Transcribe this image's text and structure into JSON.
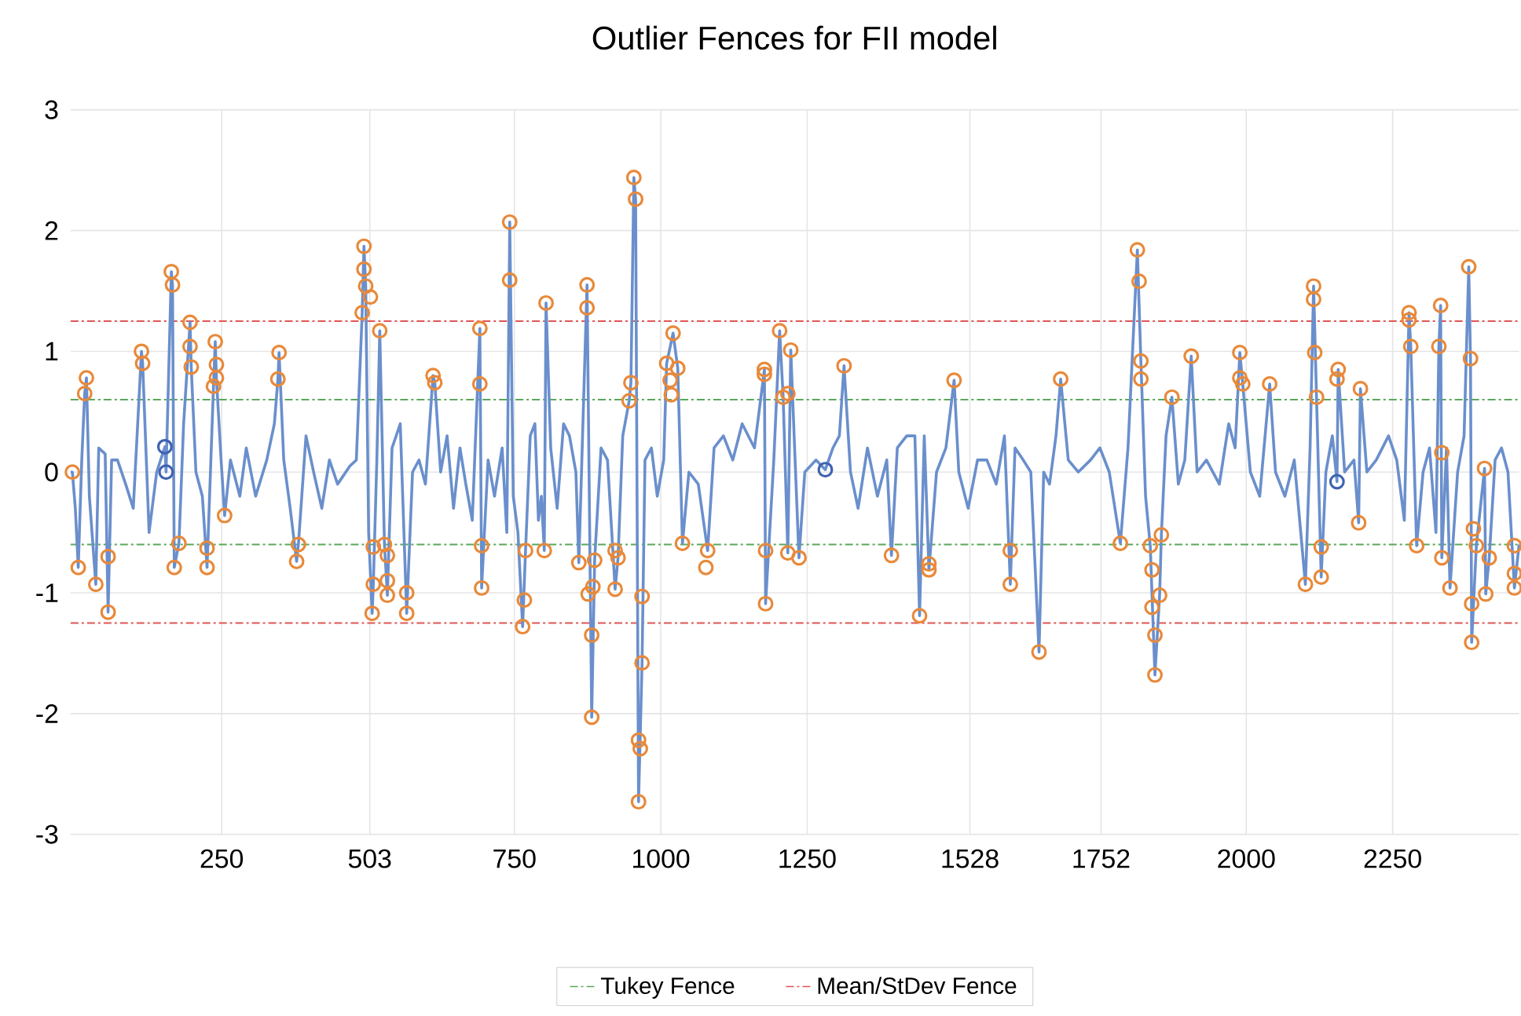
{
  "chart_data": {
    "type": "line",
    "title": "Outlier Fences for FII model",
    "xlim": [
      -8,
      2466
    ],
    "ylim": [
      -3,
      3
    ],
    "xticks": [
      250,
      503,
      750,
      1000,
      1250,
      1528,
      1752,
      2000,
      2250
    ],
    "yticks": [
      -3,
      -2,
      -1,
      0,
      1,
      2,
      3
    ],
    "grid": true,
    "legend": "bottom",
    "series": [
      {
        "color": "#6a8fcc",
        "marker": "none",
        "x": [
          -8,
          -5,
          0,
          5,
          11,
          16,
          19,
          24,
          35,
          40,
          51,
          56,
          62,
          72,
          86,
          99,
          113,
          115,
          126,
          139,
          153,
          155,
          164,
          166,
          169,
          177,
          185,
          196,
          198,
          206,
          217,
          225,
          236,
          239,
          241,
          249,
          255,
          265,
          281,
          292,
          308,
          327,
          340,
          346,
          348,
          356,
          367,
          378,
          381,
          394,
          407,
          421,
          434,
          448,
          469,
          480,
          490,
          493,
          496,
          501,
          507,
          509,
          515,
          520,
          528,
          533,
          541,
          555,
          566,
          576,
          587,
          598,
          611,
          614,
          624,
          635,
          646,
          657,
          667,
          678,
          691,
          694,
          705,
          716,
          729,
          737,
          742,
          748,
          756,
          764,
          769,
          777,
          785,
          791,
          796,
          801,
          804,
          812,
          823,
          834,
          844,
          855,
          860,
          874,
          882,
          887,
          898,
          909,
          922,
          927,
          935,
          946,
          949,
          954,
          957,
          962,
          968,
          973,
          984,
          994,
          1005,
          1010,
          1021,
          1029,
          1037,
          1048,
          1064,
          1080,
          1091,
          1107,
          1123,
          1139,
          1160,
          1177,
          1179,
          1193,
          1203,
          1209,
          1217,
          1222,
          1236,
          1246,
          1265,
          1281,
          1294,
          1305,
          1313,
          1324,
          1337,
          1353,
          1370,
          1386,
          1394,
          1404,
          1420,
          1434,
          1442,
          1450,
          1458,
          1471,
          1487,
          1501,
          1509,
          1525,
          1541,
          1557,
          1573,
          1587,
          1597,
          1605,
          1619,
          1632,
          1646,
          1654,
          1664,
          1675,
          1683,
          1696,
          1713,
          1734,
          1750,
          1766,
          1785,
          1798,
          1814,
          1820,
          1828,
          1836,
          1844,
          1852,
          1855,
          1863,
          1873,
          1884,
          1895,
          1906,
          1916,
          1932,
          1954,
          1970,
          1981,
          1989,
          1994,
          2007,
          2023,
          2040,
          2050,
          2066,
          2082,
          2101,
          2109,
          2115,
          2120,
          2128,
          2136,
          2147,
          2155,
          2157,
          2168,
          2184,
          2192,
          2195,
          2206,
          2222,
          2243,
          2257,
          2270,
          2278,
          2281,
          2291,
          2302,
          2313,
          2324,
          2329,
          2332,
          2334,
          2342,
          2348,
          2361,
          2372,
          2380,
          2383,
          2385,
          2393,
          2407,
          2409,
          2415,
          2425,
          2436,
          2447,
          2458,
          2466
        ],
        "values": [
          0.0,
          0.0,
          -0.3,
          -0.79,
          0.1,
          0.65,
          0.78,
          -0.2,
          -0.93,
          0.2,
          0.15,
          -1.16,
          0.1,
          0.1,
          -0.1,
          -0.3,
          1.0,
          0.9,
          -0.5,
          0.0,
          0.21,
          0.0,
          1.66,
          1.55,
          -0.79,
          -0.59,
          0.4,
          1.24,
          0.87,
          0.0,
          -0.2,
          -0.79,
          0.71,
          1.08,
          0.78,
          0.1,
          -0.36,
          0.1,
          -0.2,
          0.2,
          -0.2,
          0.1,
          0.4,
          0.77,
          0.99,
          0.1,
          -0.3,
          -0.74,
          -0.6,
          0.3,
          0.0,
          -0.3,
          0.1,
          -0.1,
          0.05,
          0.1,
          1.32,
          1.87,
          1.54,
          -0.5,
          -1.17,
          -0.93,
          0.1,
          1.17,
          -0.6,
          -1.02,
          0.2,
          0.4,
          -1.17,
          0.0,
          0.1,
          -0.1,
          0.8,
          0.74,
          0.0,
          0.3,
          -0.3,
          0.2,
          -0.1,
          -0.4,
          1.19,
          -0.96,
          0.1,
          -0.2,
          0.2,
          -0.5,
          2.07,
          -0.2,
          -0.5,
          -1.28,
          -0.65,
          0.3,
          0.4,
          -0.4,
          -0.2,
          -0.65,
          1.4,
          0.2,
          -0.3,
          0.4,
          0.3,
          0.0,
          -0.75,
          1.55,
          -2.03,
          -0.73,
          0.2,
          0.1,
          -0.97,
          -0.71,
          0.3,
          0.59,
          0.74,
          2.44,
          2.26,
          -2.73,
          -1.58,
          0.1,
          0.2,
          -0.2,
          0.1,
          0.9,
          1.15,
          0.86,
          -0.59,
          0.0,
          -0.1,
          -0.65,
          0.2,
          0.3,
          0.1,
          0.4,
          0.2,
          0.85,
          -1.09,
          0.1,
          1.17,
          0.62,
          -0.67,
          1.01,
          -0.71,
          0.0,
          0.1,
          0.02,
          0.2,
          0.3,
          0.88,
          0.0,
          -0.3,
          0.2,
          -0.2,
          0.1,
          -0.69,
          0.2,
          0.3,
          0.3,
          -1.19,
          0.3,
          -0.81,
          0.0,
          0.2,
          0.76,
          0.0,
          -0.3,
          0.1,
          0.1,
          -0.1,
          0.3,
          -0.93,
          0.2,
          0.1,
          0.0,
          -1.49,
          0.0,
          -0.1,
          0.3,
          0.77,
          0.1,
          0.0,
          0.1,
          0.2,
          0.0,
          -0.59,
          0.2,
          1.84,
          0.92,
          -0.2,
          -0.61,
          -1.68,
          -1.02,
          -0.52,
          0.3,
          0.62,
          -0.1,
          0.1,
          0.96,
          0.0,
          0.1,
          -0.1,
          0.4,
          0.2,
          0.99,
          0.73,
          0.0,
          -0.2,
          0.73,
          0.0,
          -0.2,
          0.1,
          -0.93,
          0.2,
          1.54,
          0.62,
          -0.87,
          0.0,
          0.3,
          -0.08,
          0.85,
          0.0,
          0.1,
          -0.42,
          0.69,
          0.0,
          0.1,
          0.3,
          0.1,
          -0.4,
          1.32,
          1.04,
          -0.61,
          0.0,
          0.2,
          -0.5,
          1.04,
          1.38,
          -0.71,
          0.2,
          -0.96,
          0.0,
          0.3,
          1.7,
          0.94,
          -1.41,
          -0.61,
          0.03,
          -1.01,
          -0.71,
          0.1,
          0.2,
          0.0,
          -0.96,
          -0.6
        ]
      },
      {
        "type": "scatter",
        "color": "#e8893a",
        "marker": "circle",
        "x": [
          -5,
          5,
          16,
          19,
          35,
          56,
          56,
          113,
          115,
          164,
          166,
          169,
          177,
          196,
          196,
          198,
          225,
          225,
          236,
          239,
          241,
          241,
          255,
          346,
          348,
          378,
          381,
          490,
          493,
          493,
          496,
          504,
          507,
          509,
          509,
          520,
          528,
          533,
          533,
          533,
          566,
          566,
          611,
          614,
          691,
          691,
          694,
          694,
          742,
          742,
          764,
          767,
          769,
          801,
          804,
          860,
          874,
          874,
          876,
          882,
          882,
          884,
          887,
          922,
          922,
          927,
          946,
          949,
          954,
          957,
          962,
          962,
          965,
          968,
          968,
          1010,
          1016,
          1018,
          1021,
          1029,
          1037,
          1077,
          1080,
          1177,
          1177,
          1179,
          1179,
          1203,
          1209,
          1217,
          1217,
          1222,
          1236,
          1313,
          1394,
          1442,
          1458,
          1458,
          1501,
          1597,
          1597,
          1646,
          1683,
          1785,
          1814,
          1817,
          1820,
          1820,
          1836,
          1839,
          1839,
          1844,
          1844,
          1852,
          1855,
          1873,
          1906,
          1989,
          1989,
          1994,
          2040,
          2101,
          2115,
          2115,
          2117,
          2120,
          2128,
          2128,
          2155,
          2157,
          2192,
          2195,
          2278,
          2278,
          2281,
          2291,
          2329,
          2332,
          2334,
          2334,
          2348,
          2380,
          2383,
          2385,
          2385,
          2388,
          2393,
          2407,
          2409,
          2415,
          2458,
          2458,
          2458
        ],
        "values": [
          0.0,
          -0.79,
          0.65,
          0.78,
          -0.93,
          -0.7,
          -1.16,
          1.0,
          0.9,
          1.66,
          1.55,
          -0.79,
          -0.59,
          1.24,
          1.04,
          0.87,
          -0.63,
          -0.79,
          0.71,
          1.08,
          0.89,
          0.78,
          -0.36,
          0.77,
          0.99,
          -0.74,
          -0.6,
          1.32,
          1.87,
          1.68,
          1.54,
          1.45,
          -1.17,
          -0.62,
          -0.93,
          1.17,
          -0.6,
          -0.69,
          -0.9,
          -1.02,
          -1.0,
          -1.17,
          0.8,
          0.74,
          1.19,
          0.73,
          -0.61,
          -0.96,
          2.07,
          1.59,
          -1.28,
          -1.06,
          -0.65,
          -0.65,
          1.4,
          -0.75,
          1.55,
          1.36,
          -1.01,
          -1.35,
          -2.03,
          -0.95,
          -0.73,
          -0.65,
          -0.97,
          -0.71,
          0.59,
          0.74,
          2.44,
          2.26,
          -2.22,
          -2.73,
          -2.29,
          -1.03,
          -1.58,
          0.9,
          0.76,
          0.64,
          1.15,
          0.86,
          -0.59,
          -0.79,
          -0.65,
          0.85,
          0.81,
          -0.65,
          -1.09,
          1.17,
          0.62,
          0.65,
          -0.67,
          1.01,
          -0.71,
          0.88,
          -0.69,
          -1.19,
          -0.76,
          -0.81,
          0.76,
          -0.65,
          -0.93,
          -1.49,
          0.77,
          -0.59,
          1.84,
          1.58,
          0.92,
          0.77,
          -0.61,
          -0.81,
          -1.12,
          -1.35,
          -1.68,
          -1.02,
          -0.52,
          0.62,
          0.96,
          0.99,
          0.78,
          0.73,
          0.73,
          -0.93,
          1.54,
          1.43,
          0.99,
          0.62,
          -0.62,
          -0.87,
          0.77,
          0.85,
          -0.42,
          0.69,
          1.32,
          1.26,
          1.04,
          -0.61,
          1.04,
          1.38,
          0.16,
          -0.71,
          -0.96,
          1.7,
          0.94,
          -1.09,
          -1.41,
          -0.47,
          -0.61,
          0.03,
          -1.01,
          -0.71,
          -0.61,
          -0.84,
          -0.96
        ]
      },
      {
        "type": "scatter",
        "color": "#3f63b0",
        "marker": "circle",
        "x": [
          153,
          155,
          1281,
          2155
        ],
        "values": [
          0.21,
          0.0,
          0.02,
          -0.08
        ]
      }
    ],
    "ref_lines": [
      {
        "axis": "y",
        "value": 0.6,
        "label": "Tukey Fence",
        "color": "#5aa85a",
        "line_style": "dashed"
      },
      {
        "axis": "y",
        "value": -0.6,
        "color": "#5aa85a",
        "line_style": "dashed"
      },
      {
        "axis": "y",
        "value": 1.25,
        "label": "Mean/StDev Fence",
        "color": "#e05555",
        "line_style": "dashed"
      },
      {
        "axis": "y",
        "value": -1.25,
        "color": "#e05555",
        "line_style": "dashed"
      }
    ]
  }
}
